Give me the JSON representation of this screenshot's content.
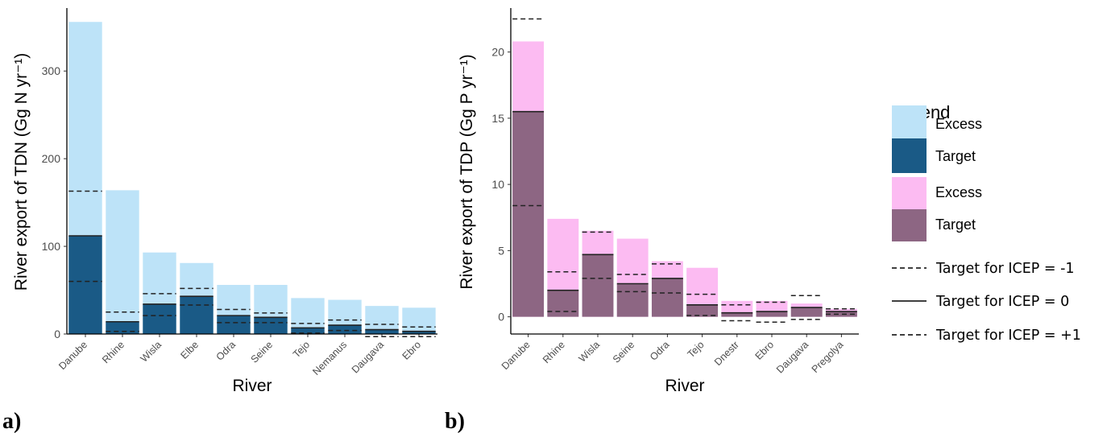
{
  "chart_data": [
    {
      "type": "bar",
      "panel_label": "a)",
      "xlabel": "River",
      "ylabel": "River export of TDN (Gg N yr⁻¹)",
      "ylim": [
        0,
        370
      ],
      "yticks": [
        0,
        100,
        200,
        300
      ],
      "grid": false,
      "categories": [
        "Danube",
        "Rhine",
        "Wisla",
        "Elbe",
        "Odra",
        "Seine",
        "Tejo",
        "Nemanus",
        "Daugava",
        "Ebro"
      ],
      "series": [
        {
          "name": "Excess",
          "total_values": [
            356,
            164,
            93,
            81,
            56,
            56,
            41,
            39,
            32,
            30
          ]
        },
        {
          "name": "Target",
          "values": [
            112,
            14,
            34,
            43,
            21,
            19,
            7,
            10,
            5,
            3
          ]
        }
      ],
      "target_icep_minus1": [
        163,
        25,
        46,
        52,
        28,
        24,
        12,
        16,
        11,
        8
      ],
      "target_icep_plus1": [
        60,
        3,
        21,
        33,
        13,
        13,
        1,
        4,
        -3,
        -3
      ]
    },
    {
      "type": "bar",
      "panel_label": "b)",
      "xlabel": "River",
      "ylabel": "River export of TDP (Gg P yr⁻¹)",
      "ylim": [
        -1.3,
        23.2
      ],
      "yticks": [
        0,
        5,
        10,
        15,
        20
      ],
      "grid": false,
      "categories": [
        "Danube",
        "Rhine",
        "Wisla",
        "Seine",
        "Odra",
        "Tejo",
        "Dnestr",
        "Ebro",
        "Daugava",
        "Pregolya"
      ],
      "series": [
        {
          "name": "Excess",
          "total_values": [
            20.8,
            7.4,
            6.5,
            5.9,
            4.2,
            3.7,
            1.2,
            1.2,
            1.0,
            0.6
          ]
        },
        {
          "name": "Target",
          "values": [
            15.5,
            2.0,
            4.7,
            2.5,
            2.9,
            0.9,
            0.3,
            0.4,
            0.7,
            0.4
          ]
        }
      ],
      "target_icep_minus1": [
        22.5,
        3.4,
        6.4,
        3.2,
        4.0,
        1.7,
        0.9,
        1.1,
        1.6,
        0.6
      ],
      "target_icep_plus1": [
        8.4,
        0.4,
        2.9,
        1.9,
        1.8,
        0.1,
        -0.3,
        -0.4,
        -0.2,
        0.2
      ]
    }
  ],
  "legend": {
    "title": "Legend",
    "placement": "right",
    "items": [
      {
        "label": "Excess",
        "color": "#bde3f8"
      },
      {
        "label": "Target",
        "color": "#1a5a86"
      },
      {
        "label": "Excess",
        "color": "#fcbbf2"
      },
      {
        "label": "Target",
        "color": "#8d6683"
      }
    ],
    "line_items": [
      {
        "label": "Target for ICEP = -1",
        "style": "dashed"
      },
      {
        "label": "Target for ICEP = 0",
        "style": "solid"
      },
      {
        "label": "Target for ICEP = +1",
        "style": "dashed"
      }
    ]
  },
  "colors": {
    "n_excess": "#bde3f8",
    "n_target": "#1a5a86",
    "p_excess": "#fcbbf2",
    "p_target": "#8d6683"
  }
}
